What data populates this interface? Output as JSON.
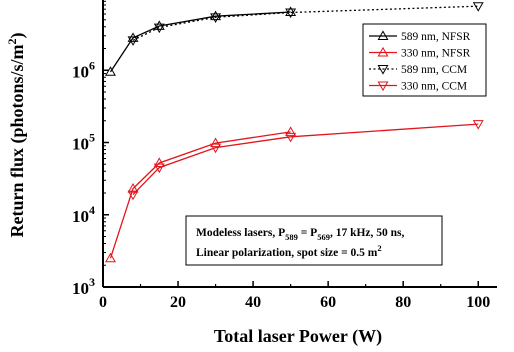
{
  "chart_data": {
    "type": "line",
    "xlabel": "Total laser Power (W)",
    "ylabel": "Return flux (photons/s/m²)",
    "ylabel_parts": {
      "text": "Return flux (photons/s/m",
      "sup": "2",
      "close": ")"
    },
    "xlim": [
      0,
      105
    ],
    "ylim": [
      1000,
      10000000
    ],
    "yscale": "log",
    "xticks": [
      0,
      20,
      40,
      60,
      80,
      100
    ],
    "xtick_labels": [
      "0",
      "20",
      "40",
      "60",
      "80",
      "100"
    ],
    "yticks": [
      {
        "value": 1000,
        "base": "10",
        "exp": "3"
      },
      {
        "value": 10000,
        "base": "10",
        "exp": "4"
      },
      {
        "value": 100000,
        "base": "10",
        "exp": "5"
      },
      {
        "value": 1000000,
        "base": "10",
        "exp": "6"
      }
    ],
    "grid": false,
    "legend_position": "top-right",
    "series": [
      {
        "name": "589 nm, NFSR",
        "color": "#000000",
        "dash": "solid",
        "marker": "triangle-up",
        "x": [
          2,
          8,
          15,
          30,
          50
        ],
        "y": [
          950000,
          2800000,
          4100000,
          5600000,
          6400000
        ]
      },
      {
        "name": "330 nm, NFSR",
        "color": "#e3141b",
        "dash": "solid",
        "marker": "triangle-up",
        "x": [
          2,
          8,
          15,
          30,
          50
        ],
        "y": [
          2500,
          23000,
          52000,
          98000,
          140000
        ]
      },
      {
        "name": "589 nm, CCM",
        "color": "#000000",
        "dash": "dotted",
        "marker": "triangle-down",
        "x": [
          8,
          15,
          30,
          50,
          100
        ],
        "y": [
          2600000,
          3900000,
          5400000,
          6300000,
          7700000
        ]
      },
      {
        "name": "330 nm, CCM",
        "color": "#e3141b",
        "dash": "solid",
        "marker": "triangle-down",
        "x": [
          8,
          15,
          30,
          50,
          100
        ],
        "y": [
          19000,
          45000,
          85000,
          120000,
          180000
        ]
      }
    ],
    "annotation": {
      "line1": {
        "a": "Modeless lasers, P",
        "s1": "589",
        "b": " = P",
        "s2": "569",
        "c": ", 17 kHz, 50 ns,"
      },
      "line2": {
        "a": "Linear polarization, spot size = 0.5 m",
        "sup": "2"
      }
    }
  }
}
